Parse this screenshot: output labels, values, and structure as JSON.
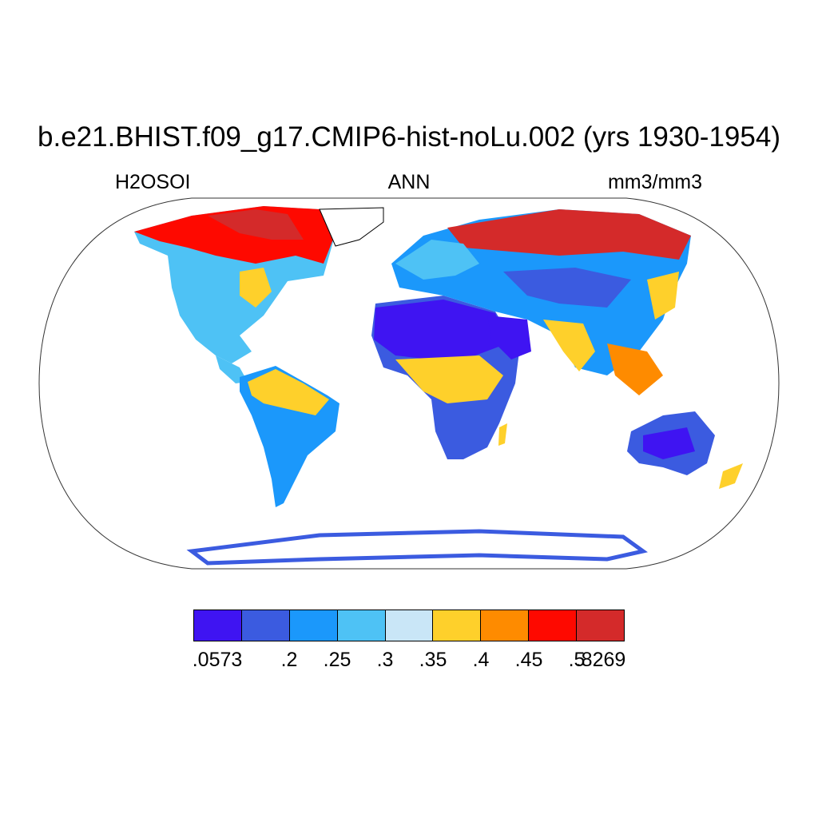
{
  "title": "b.e21.BHIST.f09_g17.CMIP6-hist-noLu.002 (yrs 1930-1954)",
  "variable": "H2OSOI",
  "season": "ANN",
  "units": "mm3/mm3",
  "colorbar": {
    "colors": [
      "#3f14f2",
      "#3b5be0",
      "#1b98fb",
      "#4ec2f5",
      "#c9e6f7",
      "#fed02b",
      "#fe8b00",
      "#fe0900",
      "#d42a2a"
    ],
    "tick_labels": [
      ".0573",
      ".2",
      ".25",
      ".3",
      ".35",
      ".4",
      ".45",
      ".5",
      ".8269"
    ]
  },
  "map": {
    "projection": "robinson",
    "ocean_color": "#ffffff"
  }
}
